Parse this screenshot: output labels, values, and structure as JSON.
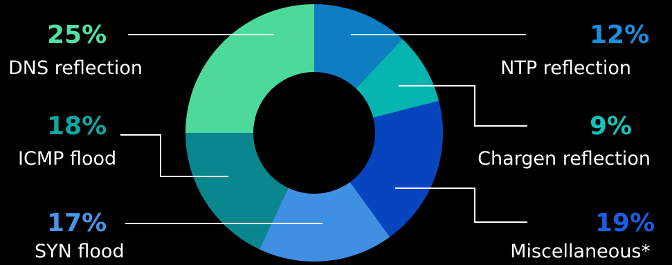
{
  "chart_data": {
    "type": "pie",
    "variant": "donut",
    "title": "",
    "slices": [
      {
        "label": "NTP reflection",
        "value": 12,
        "value_label": "12%",
        "color": "#0e7dc2",
        "label_color": "#1a8fe0"
      },
      {
        "label": "Chargen reflection",
        "value": 9,
        "value_label": "9%",
        "color": "#06b4b0",
        "label_color": "#14c3bb"
      },
      {
        "label": "Miscellaneous*",
        "value": 19,
        "value_label": "19%",
        "color": "#0645bd",
        "label_color": "#1a5fe0"
      },
      {
        "label": "SYN flood",
        "value": 17,
        "value_label": "17%",
        "color": "#3f8fe3",
        "label_color": "#4a95ec"
      },
      {
        "label": "ICMP flood",
        "value": 18,
        "value_label": "18%",
        "color": "#0a878e",
        "label_color": "#10a6a1"
      },
      {
        "label": "DNS reflection",
        "value": 25,
        "value_label": "25%",
        "color": "#4dd99b",
        "label_color": "#52e0a3"
      }
    ]
  }
}
